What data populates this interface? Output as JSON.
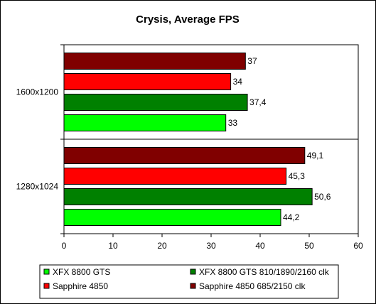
{
  "chart_data": {
    "type": "bar",
    "orientation": "horizontal",
    "title": "Crysis, Average FPS",
    "xlim": [
      0,
      60
    ],
    "xticks": [
      0,
      10,
      20,
      30,
      40,
      50,
      60
    ],
    "categories": [
      "1600x1200",
      "1280x1024"
    ],
    "series": [
      {
        "name": "Sapphire 4850 685/2150 clk",
        "color": "#800000",
        "values": [
          37,
          49.1
        ],
        "labels": [
          "37",
          "49,1"
        ]
      },
      {
        "name": "Sapphire 4850",
        "color": "#ff0000",
        "values": [
          34,
          45.3
        ],
        "labels": [
          "34",
          "45,3"
        ]
      },
      {
        "name": "XFX 8800 GTS 810/1890/2160 clk",
        "color": "#008000",
        "values": [
          37.4,
          50.6
        ],
        "labels": [
          "37,4",
          "50,6"
        ]
      },
      {
        "name": "XFX 8800 GTS",
        "color": "#00ff00",
        "values": [
          33,
          44.2
        ],
        "labels": [
          "33",
          "44,2"
        ]
      }
    ],
    "legend": {
      "position": "bottom",
      "order": [
        "XFX 8800 GTS",
        "XFX 8800 GTS 810/1890/2160 clk",
        "Sapphire 4850",
        "Sapphire 4850 685/2150 clk"
      ]
    },
    "plot_background": "#ffffff",
    "grid": false
  }
}
